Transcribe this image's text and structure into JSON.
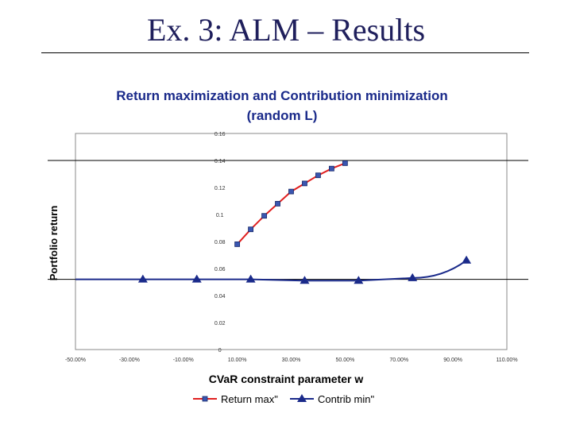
{
  "slide": {
    "title": "Ex. 3: ALM – Results"
  },
  "chart_data": {
    "type": "line",
    "title": "Return maximization and Contribution minimization",
    "subtitle": "(random L)",
    "xlabel": "CVaR constraint parameter w",
    "ylabel": "Portfolio return",
    "xlim": [
      -0.5,
      1.1
    ],
    "ylim": [
      0,
      0.16
    ],
    "x_ticks": [
      {
        "value": -0.5,
        "label": "-50.00%"
      },
      {
        "value": -0.3,
        "label": "-30.00%"
      },
      {
        "value": -0.1,
        "label": "-10.00%"
      },
      {
        "value": 0.1,
        "label": "10.00%"
      },
      {
        "value": 0.3,
        "label": "30.00%"
      },
      {
        "value": 0.5,
        "label": "50.00%"
      },
      {
        "value": 0.7,
        "label": "70.00%"
      },
      {
        "value": 0.9,
        "label": "90.00%"
      },
      {
        "value": 1.1,
        "label": "110.00%"
      }
    ],
    "y_ticks": [
      {
        "value": 0,
        "label": "0"
      },
      {
        "value": 0.02,
        "label": "0.02"
      },
      {
        "value": 0.04,
        "label": "0.04"
      },
      {
        "value": 0.06,
        "label": "0.06"
      },
      {
        "value": 0.08,
        "label": "0.08"
      },
      {
        "value": 0.1,
        "label": "0.1"
      },
      {
        "value": 0.12,
        "label": "0.12"
      },
      {
        "value": 0.14,
        "label": "0.14"
      },
      {
        "value": 0.16,
        "label": "0.16"
      }
    ],
    "reference_lines": [
      {
        "axis": "y",
        "value": 0.14,
        "color": "#000000"
      },
      {
        "axis": "y",
        "value": 0.052,
        "color": "#000000"
      }
    ],
    "grid": false,
    "legend_position": "bottom",
    "series": [
      {
        "name": "Return max\"",
        "line_color": "#e02020",
        "marker": "square",
        "marker_color": "#3a56b0",
        "points": [
          [
            0.1,
            0.078
          ],
          [
            0.15,
            0.089
          ],
          [
            0.2,
            0.099
          ],
          [
            0.25,
            0.108
          ],
          [
            0.3,
            0.117
          ],
          [
            0.35,
            0.123
          ],
          [
            0.4,
            0.129
          ],
          [
            0.45,
            0.134
          ],
          [
            0.5,
            0.138
          ]
        ]
      },
      {
        "name": "Contrib min\"",
        "line_color": "#1a2a8a",
        "marker": "triangle",
        "marker_color": "#1a2a8a",
        "points": [
          [
            -0.25,
            0.052
          ],
          [
            -0.05,
            0.052
          ],
          [
            0.15,
            0.052
          ],
          [
            0.35,
            0.051
          ],
          [
            0.55,
            0.051
          ],
          [
            0.75,
            0.053
          ],
          [
            0.95,
            0.066
          ]
        ]
      }
    ]
  }
}
